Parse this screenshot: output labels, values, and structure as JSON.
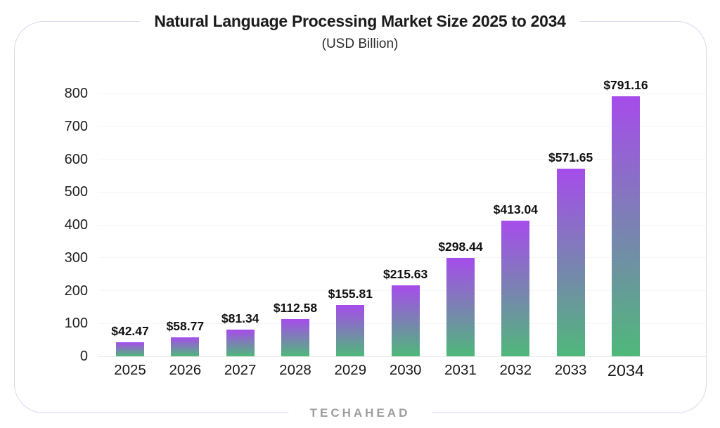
{
  "header": {
    "title": "Natural Language Processing Market Size 2025 to 2034",
    "subtitle": "(USD Billion)"
  },
  "footer": {
    "brand": "TECHAHEAD"
  },
  "colors": {
    "bar_gradient_top": "#a64ceb",
    "bar_gradient_bottom": "#4fb87a",
    "card_border": "#ded4ee",
    "gridline": "#f6f5f7",
    "baseline": "#e9e9e9",
    "title_text": "#1b1b1b",
    "axis_text": "#1f1f1f",
    "value_text": "#111111",
    "brand_text": "#9d9d9d"
  },
  "chart_data": {
    "type": "bar",
    "title": "Natural Language Processing Market Size 2025 to 2034",
    "subtitle": "(USD Billion)",
    "categories": [
      "2025",
      "2026",
      "2027",
      "2028",
      "2029",
      "2030",
      "2031",
      "2032",
      "2033",
      "2034"
    ],
    "values": [
      42.47,
      58.77,
      81.34,
      112.58,
      155.81,
      215.63,
      298.44,
      413.04,
      571.65,
      791.16
    ],
    "value_labels": [
      "$42.47",
      "$58.77",
      "$81.34",
      "$112.58",
      "$155.81",
      "$215.63",
      "$298.44",
      "$413.04",
      "$571.65",
      "$791.16"
    ],
    "y_ticks": [
      0,
      100,
      200,
      300,
      400,
      500,
      600,
      700,
      800
    ],
    "y_tick_labels": [
      "0",
      "100",
      "200",
      "300",
      "400",
      "500",
      "600",
      "700",
      "800"
    ],
    "ylim": [
      0,
      800
    ],
    "xlabel": "",
    "ylabel": "",
    "grid": true,
    "legend": false,
    "bar_style": "vertical gradient purple-to-green per bar"
  }
}
